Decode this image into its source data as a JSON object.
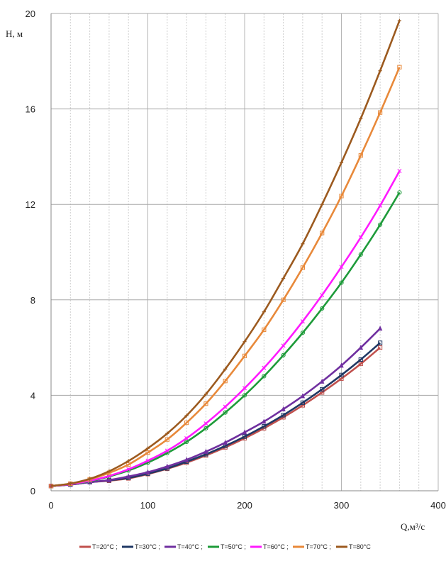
{
  "chart_data": {
    "type": "line",
    "xlabel": "Q,м³/с",
    "ylabel": "H, м",
    "xlim": [
      0,
      400
    ],
    "ylim": [
      0,
      20
    ],
    "xticks": [
      "0",
      "100",
      "200",
      "300",
      "400"
    ],
    "yticks": [
      "0",
      "4",
      "8",
      "12",
      "16",
      "20"
    ],
    "grid": {
      "vertical_minor_step": 20,
      "major_step_x": 100,
      "major_step_y": 4
    },
    "legend_position": "bottom",
    "series": [
      {
        "name": "T=20°C ;",
        "color": "#c0504d",
        "marker": "square",
        "x": [
          0,
          20,
          40,
          60,
          80,
          100,
          120,
          140,
          160,
          180,
          200,
          220,
          240,
          260,
          280,
          300,
          320,
          340
        ],
        "y": [
          0.2,
          0.26,
          0.36,
          0.42,
          0.52,
          0.7,
          0.92,
          1.18,
          1.48,
          1.82,
          2.2,
          2.62,
          3.08,
          3.58,
          4.12,
          4.7,
          5.32,
          6.0
        ]
      },
      {
        "name": "T=30°C ;",
        "color": "#1f3864",
        "marker": "square",
        "x": [
          0,
          20,
          40,
          60,
          80,
          100,
          120,
          140,
          160,
          180,
          200,
          220,
          240,
          260,
          280,
          300,
          320,
          340
        ],
        "y": [
          0.2,
          0.26,
          0.36,
          0.44,
          0.54,
          0.72,
          0.94,
          1.22,
          1.53,
          1.88,
          2.27,
          2.7,
          3.17,
          3.69,
          4.25,
          4.85,
          5.5,
          6.2
        ]
      },
      {
        "name": "T=40°C ;",
        "color": "#7030a0",
        "marker": "triangle",
        "x": [
          0,
          20,
          40,
          60,
          80,
          100,
          120,
          140,
          160,
          180,
          200,
          220,
          240,
          260,
          280,
          300,
          320,
          340
        ],
        "y": [
          0.2,
          0.26,
          0.36,
          0.45,
          0.6,
          0.78,
          1.02,
          1.3,
          1.64,
          2.02,
          2.45,
          2.9,
          3.42,
          3.97,
          4.58,
          5.25,
          6.0,
          6.8
        ]
      },
      {
        "name": "T=50°C ;",
        "color": "#1e9b3a",
        "marker": "circle",
        "x": [
          0,
          20,
          40,
          60,
          80,
          100,
          120,
          140,
          160,
          180,
          200,
          220,
          240,
          260,
          280,
          300,
          320,
          340,
          360
        ],
        "y": [
          0.2,
          0.28,
          0.4,
          0.6,
          0.85,
          1.18,
          1.58,
          2.05,
          2.62,
          3.28,
          4.0,
          4.8,
          5.68,
          6.62,
          7.64,
          8.72,
          9.9,
          11.15,
          12.5
        ]
      },
      {
        "name": "T=60°C ;",
        "color": "#ff1aff",
        "marker": "x",
        "x": [
          0,
          20,
          40,
          60,
          80,
          100,
          120,
          140,
          160,
          180,
          200,
          220,
          240,
          260,
          280,
          300,
          320,
          340,
          360
        ],
        "y": [
          0.2,
          0.28,
          0.42,
          0.62,
          0.9,
          1.26,
          1.68,
          2.2,
          2.82,
          3.52,
          4.3,
          5.15,
          6.08,
          7.1,
          8.2,
          9.38,
          10.62,
          11.95,
          13.4
        ]
      },
      {
        "name": "T=70°C ;",
        "color": "#e8893a",
        "marker": "square",
        "x": [
          0,
          20,
          40,
          60,
          80,
          100,
          120,
          140,
          160,
          180,
          200,
          220,
          240,
          260,
          280,
          300,
          320,
          340,
          360
        ],
        "y": [
          0.2,
          0.3,
          0.48,
          0.75,
          1.1,
          1.6,
          2.15,
          2.85,
          3.65,
          4.6,
          5.65,
          6.75,
          8.0,
          9.35,
          10.8,
          12.35,
          14.05,
          15.85,
          17.75
        ]
      },
      {
        "name": "T=80°C",
        "color": "#9c5a1f",
        "marker": "plus",
        "x": [
          0,
          20,
          40,
          60,
          80,
          100,
          120,
          140,
          160,
          180,
          200,
          220,
          240,
          260,
          280,
          300,
          320,
          340,
          360
        ],
        "y": [
          0.2,
          0.3,
          0.5,
          0.82,
          1.25,
          1.78,
          2.4,
          3.15,
          4.05,
          5.1,
          6.25,
          7.5,
          8.9,
          10.35,
          12.0,
          13.75,
          15.6,
          17.6,
          19.7
        ]
      }
    ]
  }
}
